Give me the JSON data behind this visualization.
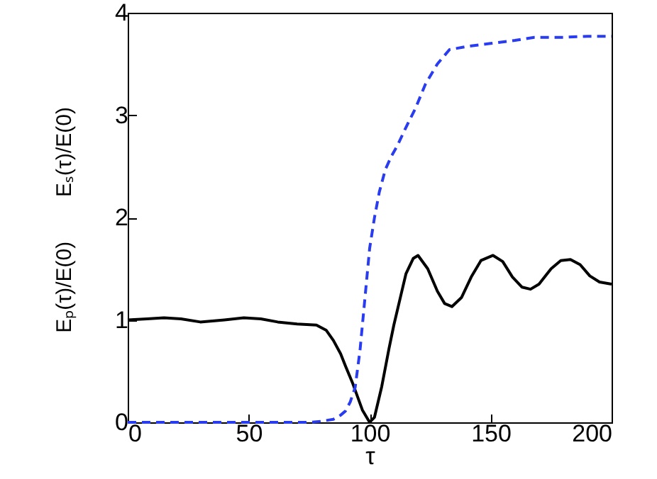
{
  "chart_data": {
    "type": "line",
    "xlabel": "τ",
    "xlim": [
      0,
      200
    ],
    "xticks": [
      0,
      50,
      100,
      150,
      200
    ],
    "ylim": [
      0,
      4
    ],
    "yticks": [
      0,
      1,
      2,
      3,
      4
    ],
    "grid": false,
    "marker": "none",
    "annotations": [
      "Eₛ(τ)/E(0)",
      "Eₚ(τ)/E(0)"
    ],
    "series": [
      {
        "color": "#000000",
        "line_style": "solid",
        "x": [
          0,
          8,
          15,
          22,
          30,
          40,
          48,
          55,
          62,
          70,
          78,
          82,
          85,
          88,
          90,
          93,
          95,
          97,
          100,
          102,
          105,
          108,
          110,
          113,
          115,
          118,
          120,
          124,
          128,
          131,
          134,
          138,
          142,
          146,
          151,
          155,
          159,
          163,
          166.5,
          170,
          175,
          179,
          183,
          187,
          191,
          195,
          200
        ],
        "values": [
          1.0,
          1.01,
          1.02,
          1.01,
          0.98,
          1.0,
          1.02,
          1.01,
          0.98,
          0.96,
          0.95,
          0.9,
          0.8,
          0.67,
          0.55,
          0.38,
          0.25,
          0.12,
          0.0,
          0.05,
          0.35,
          0.72,
          0.95,
          1.25,
          1.45,
          1.6,
          1.63,
          1.5,
          1.28,
          1.16,
          1.13,
          1.22,
          1.42,
          1.58,
          1.63,
          1.57,
          1.42,
          1.32,
          1.3,
          1.35,
          1.5,
          1.58,
          1.59,
          1.54,
          1.43,
          1.37,
          1.35
        ]
      },
      {
        "color": "#2a3cf0",
        "line_style": "dashed",
        "x": [
          0,
          20,
          40,
          60,
          75,
          80,
          85,
          88,
          90,
          92,
          94,
          96,
          98,
          100,
          102,
          104,
          106.5,
          109,
          111.4,
          115,
          119,
          123,
          128,
          133,
          140,
          150,
          160,
          168,
          180,
          190,
          200
        ],
        "values": [
          0,
          0,
          0,
          0,
          0,
          0.01,
          0.03,
          0.07,
          0.11,
          0.2,
          0.34,
          0.7,
          1.2,
          1.7,
          2.0,
          2.25,
          2.47,
          2.6,
          2.7,
          2.88,
          3.07,
          3.3,
          3.5,
          3.64,
          3.67,
          3.7,
          3.73,
          3.76,
          3.76,
          3.77,
          3.77
        ]
      }
    ]
  }
}
